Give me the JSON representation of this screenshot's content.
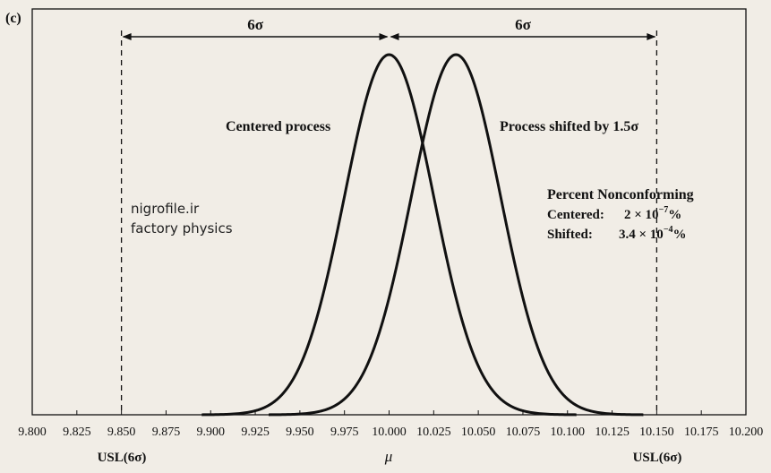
{
  "panel_label": "(c)",
  "chart_data": {
    "type": "line",
    "xlim": [
      9.8,
      10.2
    ],
    "ylim": [
      0,
      1
    ],
    "x_ticks": [
      9.8,
      9.825,
      9.85,
      9.875,
      9.9,
      9.925,
      9.95,
      9.975,
      10.0,
      10.025,
      10.05,
      10.075,
      10.1,
      10.125,
      10.15,
      10.175,
      10.2
    ],
    "x_tick_labels": [
      "9.800",
      "9.825",
      "9.850",
      "9.875",
      "9.900",
      "9.925",
      "9.950",
      "9.975",
      "10.000",
      "10.025",
      "10.050",
      "10.075",
      "10.100",
      "10.125",
      "10.150",
      "10.175",
      "10.200"
    ],
    "grid": false,
    "series": [
      {
        "name": "Centered process",
        "mean": 10.0,
        "sigma": 0.025
      },
      {
        "name": "Process shifted by 1.5σ",
        "mean": 10.0375,
        "sigma": 0.025
      }
    ],
    "vertical_lines": [
      {
        "x": 9.85,
        "label": "USL(6σ)",
        "style": "dashed"
      },
      {
        "x": 10.15,
        "label": "USL(6σ)",
        "style": "dashed"
      }
    ],
    "mean_marker": {
      "x": 10.0,
      "label": "μ"
    },
    "span_arrows": [
      {
        "from": 9.85,
        "to": 10.0,
        "label": "6σ"
      },
      {
        "from": 10.0,
        "to": 10.15,
        "label": "6σ"
      }
    ],
    "annotations": {
      "nonconforming_title": "Percent Nonconforming",
      "centered_label": "Centered:",
      "centered_value_base": "2 × 10",
      "centered_value_exp": "−7",
      "shifted_label": "Shifted:",
      "shifted_value_base": "3.4 × 10",
      "shifted_value_exp": "−4",
      "percent_sign": "%"
    }
  },
  "watermark": {
    "line1": "nigrofile.ir",
    "line2": "factory physics"
  }
}
